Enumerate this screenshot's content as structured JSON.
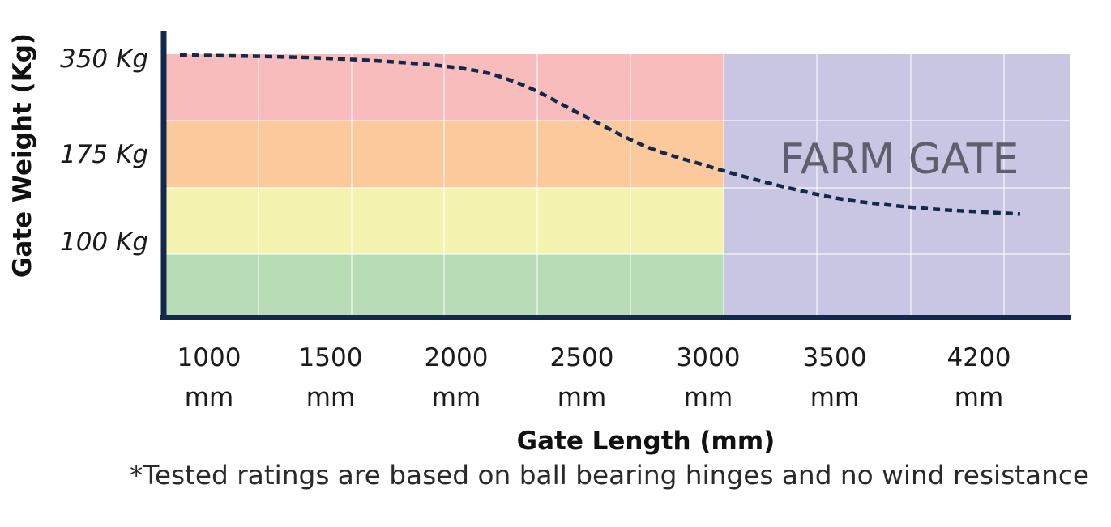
{
  "chart_data": {
    "type": "line",
    "xlabel": "Gate Length (mm)",
    "ylabel": "Gate Weight (Kg)",
    "x_ticks": [
      {
        "value": "1000",
        "unit": "mm"
      },
      {
        "value": "1500",
        "unit": "mm"
      },
      {
        "value": "2000",
        "unit": "mm"
      },
      {
        "value": "2500",
        "unit": "mm"
      },
      {
        "value": "3000",
        "unit": "mm"
      },
      {
        "value": "3500",
        "unit": "mm"
      },
      {
        "value": "4200",
        "unit": "mm"
      }
    ],
    "y_ticks": [
      "100 Kg",
      "175 Kg",
      "350 Kg"
    ],
    "bands": [
      {
        "label": "350 Kg",
        "color": "#f8bcbc"
      },
      {
        "label": "175 Kg",
        "color": "#fbc99c"
      },
      {
        "label": "100 Kg",
        "color": "#f4f3b0"
      },
      {
        "label": "",
        "color": "#b8dcb6"
      }
    ],
    "region": {
      "label": "FARM GATE",
      "color": "#c9c6e3",
      "from_tick": "3000"
    },
    "series": [
      {
        "style": "dashed",
        "color": "#13284a",
        "points": [
          {
            "x": 880,
            "y": 350
          },
          {
            "x": 1500,
            "y": 344
          },
          {
            "x": 2000,
            "y": 328
          },
          {
            "x": 2250,
            "y": 300
          },
          {
            "x": 2500,
            "y": 245
          },
          {
            "x": 2750,
            "y": 190
          },
          {
            "x": 3000,
            "y": 165
          },
          {
            "x": 3250,
            "y": 150
          },
          {
            "x": 3500,
            "y": 138
          },
          {
            "x": 3750,
            "y": 132
          },
          {
            "x": 4000,
            "y": 128
          },
          {
            "x": 4200,
            "y": 126
          },
          {
            "x": 4400,
            "y": 124
          }
        ]
      }
    ],
    "grid": true,
    "legend": "none"
  },
  "footnote": "*Tested ratings are based on ball bearing hinges and no wind resistance",
  "colors": {
    "axis": "#13284a",
    "grid": "#ffffff"
  }
}
